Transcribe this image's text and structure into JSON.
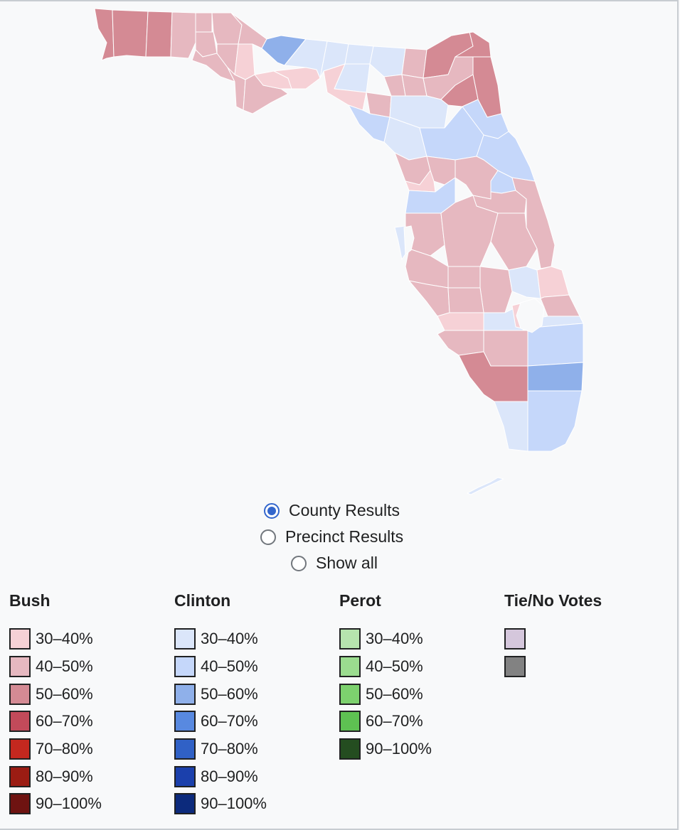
{
  "map": {
    "colors": {
      "bush_30_40": "#f6d1d6",
      "bush_40_50": "#e6b8c0",
      "bush_50_60": "#d48a94",
      "bush_60_70": "#c24a5a",
      "clinton_30_40": "#dbe6fa",
      "clinton_40_50": "#c5d7fa",
      "clinton_50_60": "#8fb0ea"
    }
  },
  "view_options": [
    {
      "label": "County Results",
      "checked": true
    },
    {
      "label": "Precinct Results",
      "checked": false
    },
    {
      "label": "Show all",
      "checked": false
    }
  ],
  "legend": [
    {
      "title": "Bush",
      "items": [
        {
          "label": "30–40%",
          "color": "#f6d1d6"
        },
        {
          "label": "40–50%",
          "color": "#e6b8c0"
        },
        {
          "label": "50–60%",
          "color": "#d48a94"
        },
        {
          "label": "60–70%",
          "color": "#c24a5a"
        },
        {
          "label": "70–80%",
          "color": "#c4281f"
        },
        {
          "label": "80–90%",
          "color": "#9b1c13"
        },
        {
          "label": "90–100%",
          "color": "#6e1311"
        }
      ]
    },
    {
      "title": "Clinton",
      "items": [
        {
          "label": "30–40%",
          "color": "#dbe6fa"
        },
        {
          "label": "40–50%",
          "color": "#c5d7fa"
        },
        {
          "label": "50–60%",
          "color": "#8fb0ea"
        },
        {
          "label": "60–70%",
          "color": "#5889e0"
        },
        {
          "label": "70–80%",
          "color": "#3061c6"
        },
        {
          "label": "80–90%",
          "color": "#1b40ac"
        },
        {
          "label": "90–100%",
          "color": "#0c2a7c"
        }
      ]
    },
    {
      "title": "Perot",
      "items": [
        {
          "label": "30–40%",
          "color": "#b6e4ae"
        },
        {
          "label": "40–50%",
          "color": "#9bdc8f"
        },
        {
          "label": "50–60%",
          "color": "#7dd16e"
        },
        {
          "label": "60–70%",
          "color": "#5ec152"
        },
        {
          "label": "90–100%",
          "color": "#244d20"
        }
      ]
    },
    {
      "title": "Tie/No Votes",
      "items": [
        {
          "label": "",
          "color": "#d5c7dc"
        },
        {
          "label": "",
          "color": "#828282"
        }
      ]
    }
  ]
}
